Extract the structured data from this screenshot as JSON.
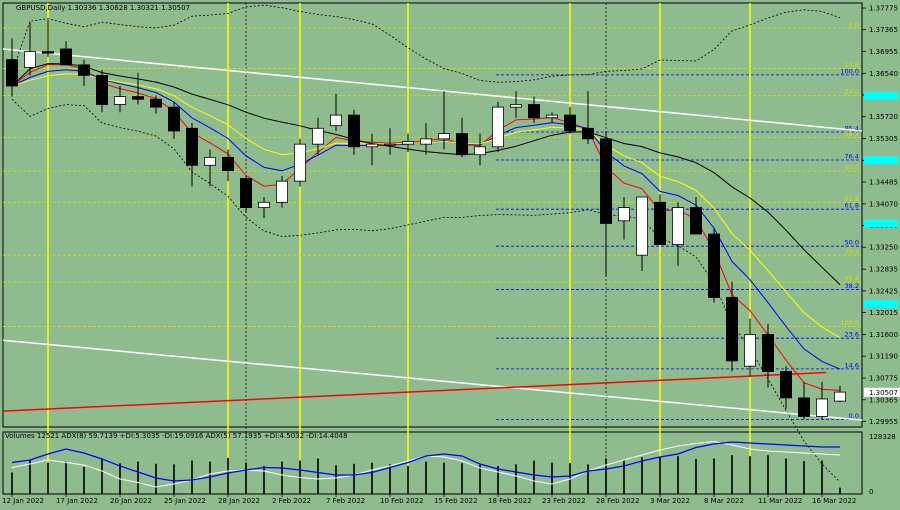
{
  "header": {
    "symbol_line": "GBPUSD,Daily  1.30336 1.30628 1.30321 1.30507",
    "indicator_line": "Volumes 12521  ADX(8) 59.7139 +DI:5.3035 -DI:19.0916  ADX(5) 57.1935 +DI:4.5032 -DI:14.4048"
  },
  "colors": {
    "background": "#8fbc8f",
    "bull_body": "#ffffff",
    "bear_body": "#000000",
    "wick": "#000000",
    "grid": "#000000",
    "yellow_line": "#ffff00",
    "fib_blue": "#0000ff",
    "fib_yellow": "#d8e000",
    "price_tag_cyan": "#00ffff",
    "current_price_tag": "#ffffff",
    "ma_red": "#ff0000",
    "ma_blue": "#0000ff",
    "ma_yellow": "#ffff00",
    "ma_black": "#000000",
    "trend_white": "#ffffff",
    "trend_red": "#ff0000",
    "adx_blue": "#0000ff",
    "adx_white": "#ffffff"
  },
  "chart_data": {
    "type": "candlestick",
    "symbol": "GBPUSD",
    "timeframe": "Daily",
    "ylim": [
      1.2985,
      1.3787
    ],
    "price_ticks": [
      "1.37775",
      "1.37365",
      "1.36955",
      "1.36540",
      "1.36130",
      "1.35720",
      "1.35305",
      "1.34895",
      "1.34485",
      "1.34070",
      "1.33660",
      "1.33250",
      "1.32835",
      "1.32425",
      "1.32015",
      "1.31600",
      "1.31190",
      "1.30775",
      "1.30365",
      "1.29955"
    ],
    "x_tick_labels": [
      {
        "i": 0,
        "label": "12 Jan 2022"
      },
      {
        "i": 3,
        "label": "17 Jan 2022"
      },
      {
        "i": 6,
        "label": "20 Jan 2022"
      },
      {
        "i": 9,
        "label": "25 Jan 2022"
      },
      {
        "i": 12,
        "label": "28 Jan 2022"
      },
      {
        "i": 15,
        "label": "2 Feb 2022"
      },
      {
        "i": 18,
        "label": "7 Feb 2022"
      },
      {
        "i": 21,
        "label": "10 Feb 2022"
      },
      {
        "i": 24,
        "label": "15 Feb 2022"
      },
      {
        "i": 27,
        "label": "18 Feb 2022"
      },
      {
        "i": 30,
        "label": "23 Feb 2022"
      },
      {
        "i": 33,
        "label": "28 Feb 2022"
      },
      {
        "i": 36,
        "label": "3 Mar 2022"
      },
      {
        "i": 39,
        "label": "8 Mar 2022"
      },
      {
        "i": 42,
        "label": "11 Mar 2022"
      },
      {
        "i": 45,
        "label": "16 Mar 2022"
      }
    ],
    "yellow_vlines": [
      2,
      12,
      16,
      22,
      31,
      36,
      41
    ],
    "dotted_vlines": [
      13,
      33
    ],
    "candles": [
      [
        1.368,
        1.372,
        1.361,
        1.363
      ],
      [
        1.3665,
        1.375,
        1.365,
        1.3695
      ],
      [
        1.3695,
        1.3755,
        1.3685,
        1.3692
      ],
      [
        1.37,
        1.3715,
        1.367,
        1.367
      ],
      [
        1.367,
        1.368,
        1.363,
        1.365
      ],
      [
        1.365,
        1.366,
        1.358,
        1.3595
      ],
      [
        1.3595,
        1.363,
        1.358,
        1.361
      ],
      [
        1.361,
        1.3655,
        1.3595,
        1.3605
      ],
      [
        1.3605,
        1.3612,
        1.3578,
        1.359
      ],
      [
        1.359,
        1.36,
        1.353,
        1.3545
      ],
      [
        1.355,
        1.356,
        1.344,
        1.348
      ],
      [
        1.348,
        1.351,
        1.344,
        1.3495
      ],
      [
        1.3495,
        1.351,
        1.345,
        1.347
      ],
      [
        1.3455,
        1.346,
        1.339,
        1.34
      ],
      [
        1.34,
        1.342,
        1.338,
        1.341
      ],
      [
        1.341,
        1.346,
        1.34,
        1.345
      ],
      [
        1.345,
        1.353,
        1.344,
        1.352
      ],
      [
        1.352,
        1.357,
        1.35,
        1.355
      ],
      [
        1.3555,
        1.3615,
        1.3545,
        1.3575
      ],
      [
        1.3575,
        1.3585,
        1.35,
        1.3515
      ],
      [
        1.3515,
        1.354,
        1.348,
        1.352
      ],
      [
        1.3518,
        1.355,
        1.35,
        1.352
      ],
      [
        1.352,
        1.354,
        1.3505,
        1.3525
      ],
      [
        1.352,
        1.356,
        1.35,
        1.353
      ],
      [
        1.353,
        1.362,
        1.351,
        1.354
      ],
      [
        1.354,
        1.357,
        1.3495,
        1.35
      ],
      [
        1.35,
        1.354,
        1.348,
        1.3515
      ],
      [
        1.3515,
        1.36,
        1.3505,
        1.359
      ],
      [
        1.359,
        1.362,
        1.357,
        1.3595
      ],
      [
        1.3595,
        1.361,
        1.356,
        1.357
      ],
      [
        1.357,
        1.358,
        1.356,
        1.3575
      ],
      [
        1.3575,
        1.359,
        1.354,
        1.3545
      ],
      [
        1.355,
        1.362,
        1.352,
        1.353
      ],
      [
        1.353,
        1.3545,
        1.327,
        1.337
      ],
      [
        1.3375,
        1.342,
        1.334,
        1.34
      ],
      [
        1.331,
        1.342,
        1.328,
        1.342
      ],
      [
        1.341,
        1.3425,
        1.333,
        1.333
      ],
      [
        1.333,
        1.341,
        1.329,
        1.34
      ],
      [
        1.34,
        1.342,
        1.335,
        1.335
      ],
      [
        1.335,
        1.336,
        1.322,
        1.323
      ],
      [
        1.323,
        1.326,
        1.309,
        1.311
      ],
      [
        1.31,
        1.319,
        1.308,
        1.316
      ],
      [
        1.316,
        1.318,
        1.306,
        1.309
      ],
      [
        1.309,
        1.31,
        1.302,
        1.304
      ],
      [
        1.304,
        1.307,
        1.3,
        1.3005
      ],
      [
        1.3005,
        1.307,
        1.3,
        1.3038
      ],
      [
        1.3034,
        1.3063,
        1.3032,
        1.3051
      ]
    ],
    "volumes": [
      0.4,
      0.62,
      0.58,
      0.6,
      0.5,
      0.66,
      0.57,
      0.6,
      0.56,
      0.55,
      0.62,
      0.6,
      0.67,
      0.58,
      0.52,
      0.6,
      0.62,
      0.66,
      0.53,
      0.56,
      0.58,
      0.55,
      0.52,
      0.6,
      0.58,
      0.57,
      0.54,
      0.52,
      0.55,
      0.62,
      0.58,
      0.57,
      0.55,
      0.66,
      0.62,
      0.68,
      0.69,
      0.7,
      0.65,
      0.66,
      0.72,
      0.7,
      0.72,
      0.66,
      0.61,
      0.62,
      0.12
    ],
    "adx_blue": [
      0.55,
      0.6,
      0.72,
      0.82,
      0.74,
      0.62,
      0.48,
      0.36,
      0.24,
      0.18,
      0.2,
      0.26,
      0.34,
      0.4,
      0.45,
      0.44,
      0.4,
      0.35,
      0.3,
      0.3,
      0.35,
      0.45,
      0.55,
      0.68,
      0.72,
      0.68,
      0.52,
      0.42,
      0.36,
      0.3,
      0.26,
      0.28,
      0.38,
      0.42,
      0.48,
      0.58,
      0.66,
      0.72,
      0.85,
      0.92,
      0.96,
      0.94,
      0.92,
      0.9,
      0.88,
      0.86,
      0.86
    ],
    "adx_white": [
      0.45,
      0.52,
      0.6,
      0.55,
      0.5,
      0.38,
      0.22,
      0.15,
      0.06,
      0.12,
      0.2,
      0.32,
      0.38,
      0.4,
      0.38,
      0.3,
      0.25,
      0.22,
      0.24,
      0.3,
      0.4,
      0.48,
      0.58,
      0.68,
      0.66,
      0.58,
      0.44,
      0.36,
      0.28,
      0.18,
      0.12,
      0.22,
      0.38,
      0.5,
      0.6,
      0.7,
      0.8,
      0.88,
      0.93,
      0.97,
      0.9,
      0.82,
      0.78,
      0.76,
      0.74,
      0.72,
      0.7
    ],
    "fib_levels_blue": [
      {
        "label": "100.0",
        "price": 1.3651
      },
      {
        "label": "85.4",
        "price": 1.3543
      },
      {
        "label": "76.4",
        "price": 1.349
      },
      {
        "label": "61.8",
        "price": 1.3397
      },
      {
        "label": "50.0",
        "price": 1.3327
      },
      {
        "label": "38.2",
        "price": 1.3245
      },
      {
        "label": "23.6",
        "price": 1.3153
      },
      {
        "label": "14.6",
        "price": 1.3095
      },
      {
        "label": "0.0",
        "price": 1.2999
      }
    ],
    "fib_levels_yellow": [
      {
        "label": "0.0",
        "price": 1.374
      },
      {
        "label": "14.6",
        "price": 1.3663
      },
      {
        "label": "23.6",
        "price": 1.3612
      },
      {
        "label": "38.2",
        "price": 1.3533
      },
      {
        "label": "50.0",
        "price": 1.3469
      },
      {
        "label": "61.8",
        "price": 1.341
      },
      {
        "label": "76.4",
        "price": 1.331
      },
      {
        "label": "85.4",
        "price": 1.3259
      },
      {
        "label": "100.0",
        "price": 1.3175
      }
    ],
    "cyan_tags": [
      1.3612,
      1.349,
      1.337,
      1.3218
    ],
    "current_price_tag": "1.30507",
    "volume_scale_label": "128328",
    "volume_zero_label": "0"
  }
}
